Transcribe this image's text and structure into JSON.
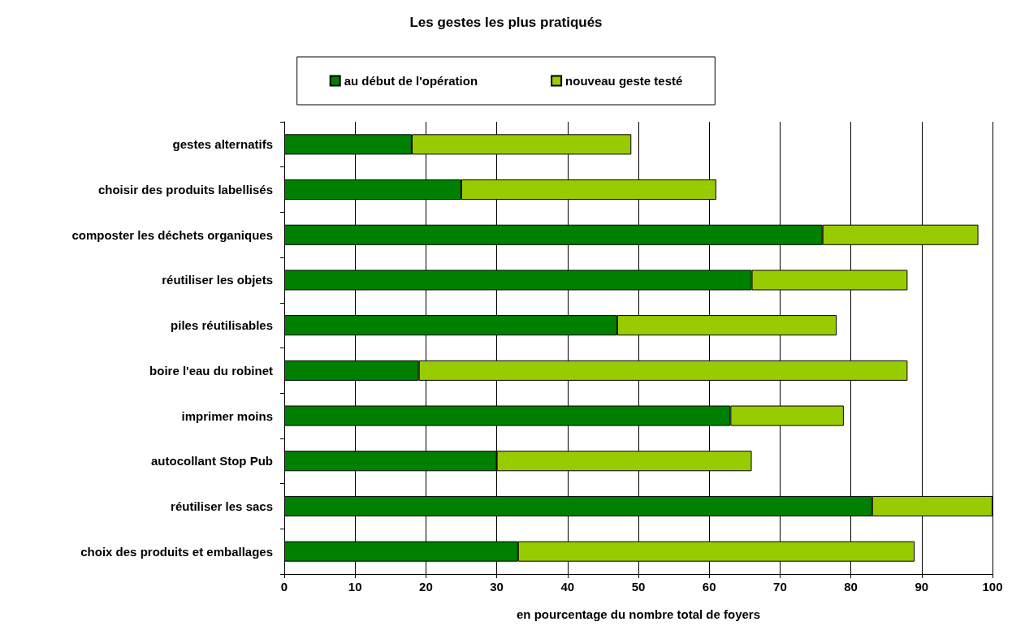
{
  "chart_data": {
    "type": "bar",
    "title": "Les gestes les plus pratiqués",
    "xlabel": "en pourcentage du nombre total de foyers",
    "orientation": "horizontal",
    "stacked": true,
    "categories": [
      "gestes alternatifs",
      "choisir des produits labellisés",
      "composter les déchets organiques",
      "réutiliser les objets",
      "piles réutilisables",
      "boire l'eau du robinet",
      "imprimer moins",
      "autocollant Stop Pub",
      "réutiliser les sacs",
      "choix des produits et emballages"
    ],
    "series": [
      {
        "name": "au début de l'opération",
        "color": "#008000",
        "values": [
          18,
          25,
          76,
          66,
          47,
          19,
          63,
          30,
          83,
          33
        ]
      },
      {
        "name": "nouveau geste testé",
        "color": "#99cc00",
        "values": [
          31,
          36,
          22,
          22,
          31,
          69,
          16,
          36,
          17,
          56
        ]
      }
    ],
    "xlim": [
      0,
      100
    ],
    "xticks": [
      0,
      10,
      20,
      30,
      40,
      50,
      60,
      70,
      80,
      90,
      100
    ],
    "grid": "x",
    "legend": "top"
  }
}
